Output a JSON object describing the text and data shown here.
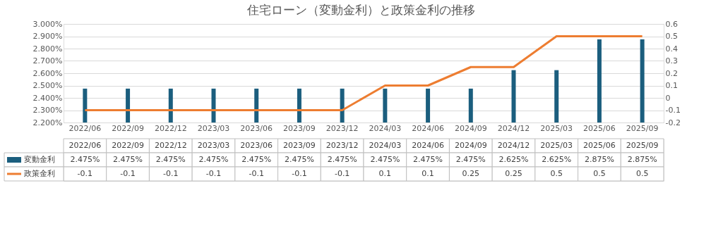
{
  "chart_data": {
    "type": "bar",
    "title": "住宅ローン（変動金利）と政策金利の推移",
    "categories": [
      "2022/06",
      "2022/09",
      "2022/12",
      "2023/03",
      "2023/06",
      "2023/09",
      "2023/12",
      "2024/03",
      "2024/06",
      "2024/09",
      "2024/12",
      "2025/03",
      "2025/06",
      "2025/09"
    ],
    "series": [
      {
        "name": "変動金利",
        "color": "#1b5e7e",
        "values": [
          2.475,
          2.475,
          2.475,
          2.475,
          2.475,
          2.475,
          2.475,
          2.475,
          2.475,
          2.475,
          2.625,
          2.625,
          2.875,
          2.875
        ],
        "value_labels": [
          "2.475%",
          "2.475%",
          "2.475%",
          "2.475%",
          "2.475%",
          "2.475%",
          "2.475%",
          "2.475%",
          "2.475%",
          "2.475%",
          "2.625%",
          "2.625%",
          "2.875%",
          "2.875%"
        ]
      },
      {
        "name": "政策金利",
        "type": "line",
        "axis": "y2",
        "color": "#ed7d31",
        "values": [
          -0.1,
          -0.1,
          -0.1,
          -0.1,
          -0.1,
          -0.1,
          -0.1,
          0.1,
          0.1,
          0.25,
          0.25,
          0.5,
          0.5,
          0.5
        ],
        "value_labels": [
          "-0.1",
          "-0.1",
          "-0.1",
          "-0.1",
          "-0.1",
          "-0.1",
          "-0.1",
          "0.1",
          "0.1",
          "0.25",
          "0.25",
          "0.5",
          "0.5",
          "0.5"
        ]
      }
    ],
    "ylim": [
      2.2,
      3.0
    ],
    "yticks": [
      {
        "value": 2.2,
        "label": "2.200%"
      },
      {
        "value": 2.3,
        "label": "2.300%"
      },
      {
        "value": 2.4,
        "label": "2.400%"
      },
      {
        "value": 2.5,
        "label": "2.500%"
      },
      {
        "value": 2.6,
        "label": "2.600%"
      },
      {
        "value": 2.7,
        "label": "2.700%"
      },
      {
        "value": 2.8,
        "label": "2.800%"
      },
      {
        "value": 2.9,
        "label": "2.900%"
      },
      {
        "value": 3.0,
        "label": "3.000%"
      }
    ],
    "y2lim": [
      -0.2,
      0.6
    ],
    "y2ticks": [
      -0.2,
      -0.1,
      0,
      0.1,
      0.2,
      0.3,
      0.4,
      0.5,
      0.6
    ],
    "grid": "y",
    "legend": "bottom",
    "data_labels": true,
    "line_style": "solid"
  }
}
